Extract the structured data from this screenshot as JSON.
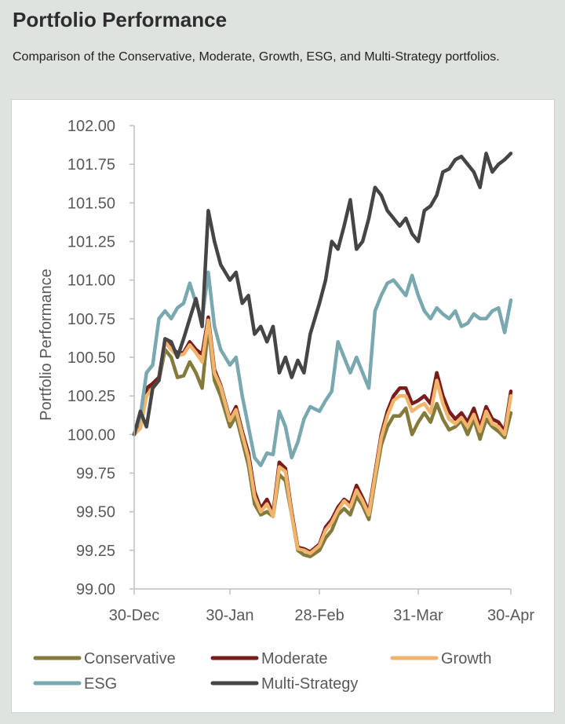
{
  "header": {
    "title": "Portfolio Performance",
    "subtitle": "Comparison of the Conservative, Moderate, Growth, ESG, and Multi-Strategy portfolios."
  },
  "chart_data": {
    "type": "line",
    "ylabel": "Portfolio Performance",
    "xlabel": "",
    "ylim": [
      99.0,
      102.0
    ],
    "xlim": [
      "2019-12-30",
      "2020-04-30"
    ],
    "yticks": [
      "99.00",
      "99.25",
      "99.50",
      "99.75",
      "100.00",
      "100.25",
      "100.50",
      "100.75",
      "101.00",
      "101.25",
      "101.50",
      "101.75",
      "102.00"
    ],
    "xticks": [
      {
        "date": "2019-12-30",
        "label": "30-Dec"
      },
      {
        "date": "2020-01-30",
        "label": "30-Jan"
      },
      {
        "date": "2020-02-28",
        "label": "28-Feb"
      },
      {
        "date": "2020-03-31",
        "label": "31-Mar"
      },
      {
        "date": "2020-04-30",
        "label": "30-Apr"
      }
    ],
    "grid": false,
    "legend_position": "bottom",
    "dates": [
      "2019-12-30",
      "2020-01-01",
      "2020-01-03",
      "2020-01-05",
      "2020-01-07",
      "2020-01-09",
      "2020-01-11",
      "2020-01-13",
      "2020-01-15",
      "2020-01-17",
      "2020-01-19",
      "2020-01-21",
      "2020-01-23",
      "2020-01-25",
      "2020-01-27",
      "2020-01-30",
      "2020-02-01",
      "2020-02-03",
      "2020-02-05",
      "2020-02-07",
      "2020-02-09",
      "2020-02-11",
      "2020-02-13",
      "2020-02-15",
      "2020-02-17",
      "2020-02-19",
      "2020-02-21",
      "2020-02-23",
      "2020-02-25",
      "2020-02-28",
      "2020-03-01",
      "2020-03-03",
      "2020-03-05",
      "2020-03-07",
      "2020-03-09",
      "2020-03-11",
      "2020-03-13",
      "2020-03-15",
      "2020-03-17",
      "2020-03-19",
      "2020-03-21",
      "2020-03-23",
      "2020-03-25",
      "2020-03-27",
      "2020-03-29",
      "2020-03-31",
      "2020-04-02",
      "2020-04-04",
      "2020-04-06",
      "2020-04-08",
      "2020-04-10",
      "2020-04-12",
      "2020-04-14",
      "2020-04-16",
      "2020-04-18",
      "2020-04-20",
      "2020-04-22",
      "2020-04-24",
      "2020-04-26",
      "2020-04-28",
      "2020-04-30"
    ],
    "series": [
      {
        "name": "Conservative",
        "color": "#847a3c",
        "values": [
          100.0,
          100.05,
          100.28,
          100.32,
          100.35,
          100.55,
          100.5,
          100.37,
          100.38,
          100.47,
          100.4,
          100.3,
          100.7,
          100.35,
          100.25,
          100.05,
          100.12,
          99.96,
          99.8,
          99.55,
          99.48,
          99.5,
          99.47,
          99.74,
          99.7,
          99.48,
          99.25,
          99.22,
          99.21,
          99.25,
          99.33,
          99.38,
          99.48,
          99.52,
          99.48,
          99.6,
          99.54,
          99.45,
          99.7,
          99.93,
          100.05,
          100.12,
          100.12,
          100.17,
          100.0,
          100.08,
          100.14,
          100.08,
          100.2,
          100.1,
          100.03,
          100.05,
          100.09,
          100.0,
          100.1,
          99.97,
          100.1,
          100.05,
          100.02,
          99.98,
          100.14
        ]
      },
      {
        "name": "Moderate",
        "color": "#7b1c1c",
        "values": [
          100.0,
          100.06,
          100.3,
          100.33,
          100.37,
          100.61,
          100.56,
          100.53,
          100.53,
          100.6,
          100.55,
          100.52,
          100.76,
          100.42,
          100.32,
          100.1,
          100.18,
          100.02,
          99.88,
          99.63,
          99.52,
          99.58,
          99.49,
          99.82,
          99.78,
          99.5,
          99.27,
          99.26,
          99.24,
          99.29,
          99.4,
          99.45,
          99.53,
          99.58,
          99.55,
          99.67,
          99.59,
          99.5,
          99.75,
          100.0,
          100.15,
          100.25,
          100.3,
          100.3,
          100.2,
          100.22,
          100.25,
          100.2,
          100.4,
          100.25,
          100.15,
          100.1,
          100.14,
          100.08,
          100.17,
          100.05,
          100.18,
          100.1,
          100.08,
          100.02,
          100.28
        ]
      },
      {
        "name": "Growth",
        "color": "#f0b46c",
        "values": [
          100.0,
          100.04,
          100.25,
          100.3,
          100.35,
          100.6,
          100.55,
          100.51,
          100.52,
          100.58,
          100.53,
          100.47,
          100.74,
          100.4,
          100.31,
          100.09,
          100.16,
          100.0,
          99.85,
          99.6,
          99.5,
          99.55,
          99.47,
          99.79,
          99.76,
          99.48,
          99.26,
          99.25,
          99.23,
          99.28,
          99.38,
          99.43,
          99.51,
          99.57,
          99.53,
          99.64,
          99.57,
          99.48,
          99.73,
          99.98,
          100.12,
          100.22,
          100.25,
          100.25,
          100.15,
          100.18,
          100.2,
          100.14,
          100.35,
          100.2,
          100.1,
          100.07,
          100.11,
          100.05,
          100.13,
          100.02,
          100.15,
          100.07,
          100.05,
          100.0,
          100.25
        ]
      },
      {
        "name": "ESG",
        "color": "#7aa8b0",
        "values": [
          100.0,
          100.12,
          100.4,
          100.45,
          100.75,
          100.8,
          100.75,
          100.82,
          100.85,
          100.98,
          100.85,
          100.75,
          101.05,
          100.7,
          100.55,
          100.45,
          100.5,
          100.25,
          100.05,
          99.85,
          99.8,
          99.88,
          99.87,
          100.15,
          100.05,
          99.85,
          99.95,
          100.1,
          100.18,
          100.15,
          100.22,
          100.28,
          100.6,
          100.5,
          100.4,
          100.5,
          100.4,
          100.3,
          100.8,
          100.9,
          100.98,
          101.0,
          100.95,
          100.9,
          101.03,
          100.9,
          100.8,
          100.75,
          100.82,
          100.78,
          100.75,
          100.8,
          100.7,
          100.72,
          100.78,
          100.75,
          100.75,
          100.8,
          100.82,
          100.66,
          100.87
        ]
      },
      {
        "name": "Multi-Strategy",
        "color": "#454545",
        "values": [
          100.0,
          100.15,
          100.05,
          100.3,
          100.35,
          100.62,
          100.6,
          100.5,
          100.62,
          100.75,
          100.88,
          100.7,
          101.45,
          101.25,
          101.1,
          101.0,
          101.05,
          100.85,
          100.9,
          100.65,
          100.7,
          100.6,
          100.7,
          100.4,
          100.5,
          100.37,
          100.48,
          100.4,
          100.65,
          100.85,
          101.0,
          101.25,
          101.2,
          101.35,
          101.52,
          101.2,
          101.25,
          101.4,
          101.6,
          101.55,
          101.45,
          101.4,
          101.35,
          101.4,
          101.3,
          101.25,
          101.45,
          101.48,
          101.55,
          101.7,
          101.72,
          101.78,
          101.8,
          101.75,
          101.7,
          101.6,
          101.82,
          101.7,
          101.75,
          101.78,
          101.82
        ]
      }
    ]
  }
}
